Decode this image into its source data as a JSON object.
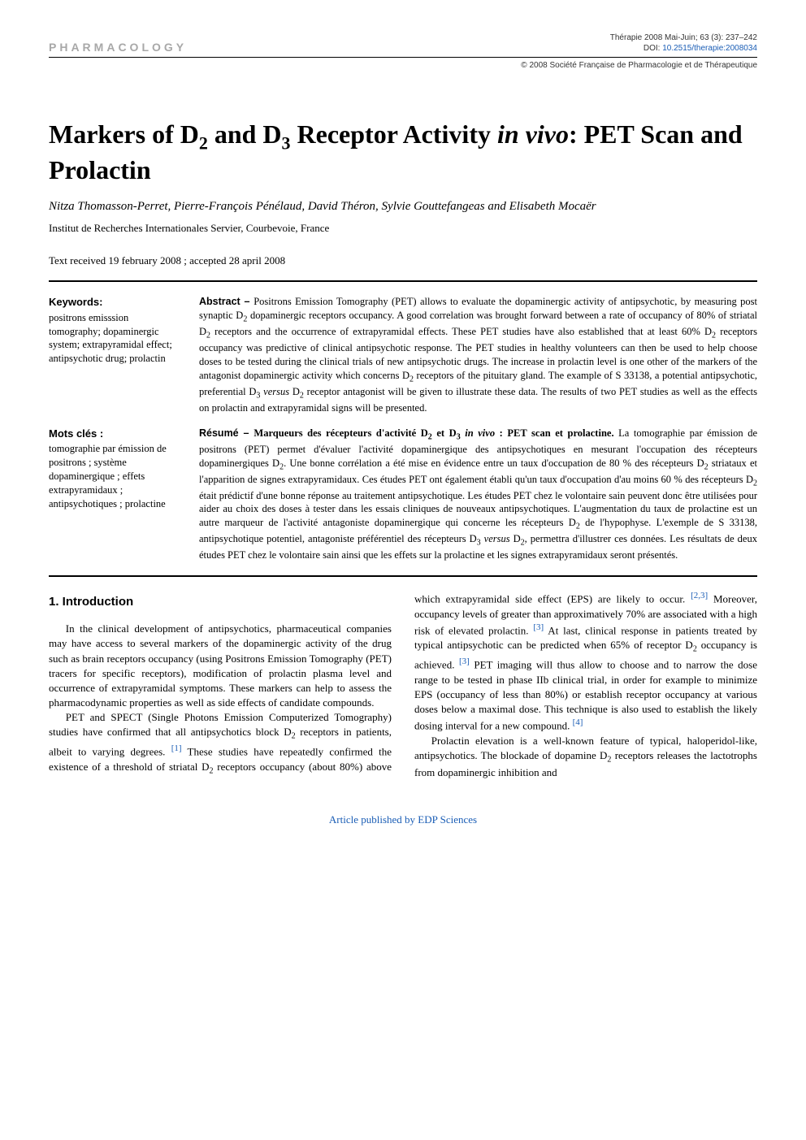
{
  "header": {
    "section_label": "PHARMACOLOGY",
    "citation": "Thérapie 2008 Mai-Juin; 63 (3): 237–242",
    "doi_label": "DOI: ",
    "doi": "10.2515/therapie:2008034",
    "copyright": "© 2008 Société Française de Pharmacologie et de Thérapeutique"
  },
  "title": {
    "pre": "Markers of D",
    "sub1": "2",
    "mid1": " and D",
    "sub2": "3",
    "mid2": " Receptor Activity ",
    "ital": "in vivo",
    "post": ": PET Scan and Prolactin"
  },
  "authors": "Nitza Thomasson-Perret, Pierre-François Pénélaud, David Théron, Sylvie Gouttefangeas and Elisabeth Mocaër",
  "affiliation": "Institut de Recherches Internationales Servier, Courbevoie, France",
  "received": "Text received 19 february 2008 ; accepted 28 april 2008",
  "keywords": {
    "label_en": "Keywords:",
    "list_en": "positrons emisssion tomography; dopaminergic system; extrapyramidal effect; antipsychotic drug; prolactin",
    "label_fr": "Mots clés :",
    "list_fr": "tomographie par émission de positrons ; système dopaminergique ; effets extrapyramidaux ; antipsychotiques ; prolactine"
  },
  "abstract": {
    "label": "Abstract – ",
    "text1": "Positrons Emission Tomography (PET) allows to evaluate the dopaminergic activity of antipsychotic, by measuring post synaptic D",
    "text2": " dopaminergic receptors occupancy. A good correlation was brought forward between a rate of occupancy of 80% of striatal D",
    "text3": " receptors and the occurrence of extrapyramidal effects. These PET studies have also established that at least 60% D",
    "text4": " receptors occupancy was predictive of clinical antipsychotic response. The PET studies in healthy volunteers can then be used to help choose doses to be tested during the clinical trials of new antipsychotic drugs. The increase in prolactin level is one other of the markers of the antagonist dopaminergic activity which concerns D",
    "text5": " receptors of the pituitary gland. The example of S 33138, a potential antipsychotic, preferential D",
    "text_versus": " versus ",
    "text6": " receptor antagonist will be given to illustrate these data. The results of two PET studies as well as the effects on prolactin and extrapyramidal signs will be presented."
  },
  "resume": {
    "label": "Résumé – ",
    "title_pre": "Marqueurs des récepteurs d'activité D",
    "title_mid": " et D",
    "title_ital": " in vivo ",
    "title_post": ": PET scan et prolactine.",
    "text1": " La tomographie par émission de positrons (PET) permet d'évaluer l'activité dopaminergique des antipsychotiques en mesurant l'occupation des récepteurs dopaminergiques D",
    "text2": ". Une bonne corrélation a été mise en évidence entre un taux d'occupation de 80 % des récepteurs D",
    "text3": " striataux et l'apparition de signes extrapyramidaux. Ces études PET ont également établi qu'un taux d'occupation d'au moins 60 % des récepteurs D",
    "text4": " était prédictif d'une bonne réponse au traitement antipsychotique. Les études PET chez le volontaire sain peuvent donc être utilisées pour aider au choix des doses à tester dans les essais cliniques de nouveaux antipsychotiques. L'augmentation du taux de prolactine est un autre marqueur de l'activité antagoniste dopaminergique qui concerne les récepteurs D",
    "text5": " de l'hypophyse. L'exemple de S 33138, antipsychotique potentiel, antagoniste préférentiel des récepteurs D",
    "text_versus": " versus ",
    "text6": ", permettra d'illustrer ces données. Les résultats de deux études PET chez le volontaire sain ainsi que les effets sur la prolactine et les signes extrapyramidaux seront présentés."
  },
  "body": {
    "heading": "1. Introduction",
    "p1a": "In the clinical development of antipsychotics, pharmaceutical companies may have access to several markers of the dopaminergic activity of the drug such as brain receptors occupancy (using Positrons Emission Tomography (PET) tracers for specific receptors), modification of prolactin plasma level and occurrence of extrapyramidal symptoms. These markers can help to assess the pharmacodynamic properties as well as side effects of candidate compounds.",
    "p2a": "PET and SPECT (Single Photons Emission Computerized Tomography) studies have confirmed that all antipsychotics block D",
    "p2b": " receptors in patients, albeit to varying degrees.",
    "ref1": "[1]",
    "p2c": " These studies have repeatedly confirmed the existence of a threshold of striatal D",
    "p2d": " receptors occupancy (about 80%) above which extrapyramidal side effect (EPS) are likely to occur.",
    "ref23": "[2,3]",
    "p2e": " Moreover, occupancy levels of greater than approximatively 70% are associated with a high risk of elevated prolactin.",
    "ref3a": "[3]",
    "p2f": " At last, clinical response in patients treated by typical antipsychotic can be predicted when 65% of receptor D",
    "p2g": " occupancy is achieved.",
    "ref3b": "[3]",
    "p2h": " PET imaging will thus allow to choose and to narrow the dose range to be tested in phase IIb clinical trial, in order for example to minimize EPS (occupancy of less than 80%) or establish receptor occupancy at various doses below a maximal dose. This technique is also used to establish the likely dosing interval for a new compound.",
    "ref4": "[4]",
    "p3a": "Prolactin elevation is a well-known feature of typical, haloperidol-like, antipsychotics. The blockade of dopamine D",
    "p3b": " receptors releases the lactotrophs from dopaminergic inhibition and"
  },
  "footer": "Article published by EDP Sciences",
  "colors": {
    "link": "#1a5db5",
    "label_gray": "#a8a8a8"
  },
  "fontsizes": {
    "title": 32,
    "authors": 15,
    "body": 13,
    "abstract": 12.5,
    "header_small": 10
  }
}
